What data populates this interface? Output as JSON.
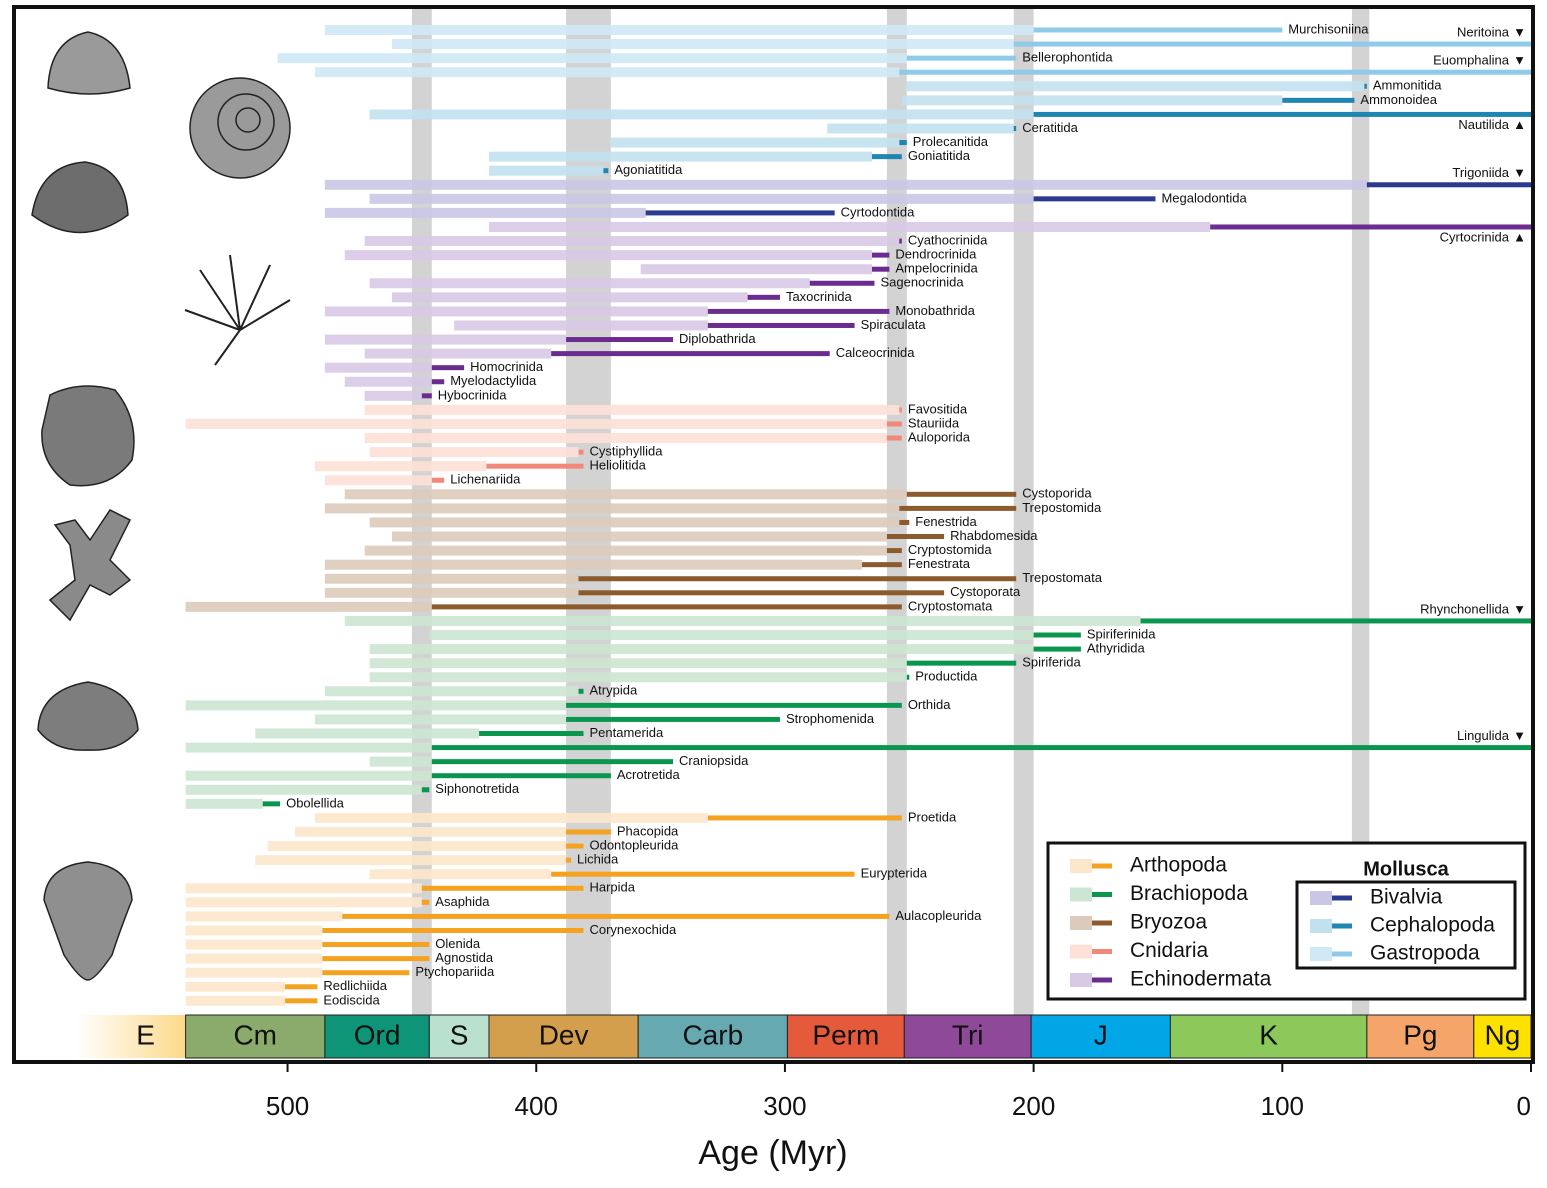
{
  "chart_data": {
    "type": "range",
    "xlabel": "Age (Myr)",
    "xlim": [
      610,
      0
    ],
    "xticks": [
      500,
      400,
      300,
      200,
      100,
      0
    ],
    "bands": [
      [
        450,
        442
      ],
      [
        388,
        370
      ],
      [
        259,
        251
      ],
      [
        208,
        200
      ],
      [
        72,
        65
      ]
    ],
    "mollusca_label": "Mollusca",
    "periods": [
      {
        "name": "E",
        "start": 585,
        "end": 541,
        "color": "#fdd98a",
        "fade": true
      },
      {
        "name": "Cm",
        "start": 541,
        "end": 485,
        "color": "#8aab6b"
      },
      {
        "name": "Ord",
        "start": 485,
        "end": 443,
        "color": "#0e9477"
      },
      {
        "name": "S",
        "start": 443,
        "end": 419,
        "color": "#b9e1cd"
      },
      {
        "name": "Dev",
        "start": 419,
        "end": 359,
        "color": "#d39f4c"
      },
      {
        "name": "Carb",
        "start": 359,
        "end": 299,
        "color": "#67a9b0"
      },
      {
        "name": "Perm",
        "start": 299,
        "end": 252,
        "color": "#e65a3c"
      },
      {
        "name": "Tri",
        "start": 252,
        "end": 201,
        "color": "#8e4a98"
      },
      {
        "name": "J",
        "start": 201,
        "end": 145,
        "color": "#00a6e6"
      },
      {
        "name": "K",
        "start": 145,
        "end": 66,
        "color": "#8cc85a"
      },
      {
        "name": "Pg",
        "start": 66,
        "end": 23,
        "color": "#f6a56a"
      },
      {
        "name": "Ng",
        "start": 23,
        "end": 0,
        "color": "#ffe100"
      }
    ],
    "clades": [
      {
        "name": "Gastropoda",
        "mollusca": true,
        "light": "#cfe9f6",
        "dark": "#8fcbe8",
        "orders": [
          {
            "name": "Murchisoniina",
            "range": [
              485,
              200
            ],
            "dark": [
              200,
              100
            ]
          },
          {
            "name": "Neritoina",
            "range": [
              458,
              208
            ],
            "dark": [
              208,
              0
            ],
            "marker": "▼"
          },
          {
            "name": "Bellerophontida",
            "range": [
              504,
              251
            ],
            "dark": [
              251,
              207
            ]
          },
          {
            "name": "Euomphalina",
            "range": [
              489,
              254
            ],
            "dark": [
              254,
              0
            ],
            "marker": "▼"
          }
        ]
      },
      {
        "name": "Cephalopoda",
        "mollusca": true,
        "light": "#c2e1ee",
        "dark": "#1f86b3",
        "orders": [
          {
            "name": "Ammonitida",
            "range": [
              251,
              67
            ],
            "dark": [
              67,
              66
            ]
          },
          {
            "name": "Ammonoidea",
            "range": [
              253,
              100
            ],
            "dark": [
              100,
              71
            ]
          },
          {
            "name": "Nautilida",
            "range": [
              467,
              200
            ],
            "dark": [
              200,
              0
            ],
            "marker": "▲"
          },
          {
            "name": "Ceratitida",
            "range": [
              283,
              208
            ],
            "dark": [
              208,
              207
            ]
          },
          {
            "name": "Prolecanitida",
            "range": [
              370,
              254
            ],
            "dark": [
              254,
              251
            ]
          },
          {
            "name": "Goniatitida",
            "range": [
              419,
              265
            ],
            "dark": [
              265,
              253
            ]
          },
          {
            "name": "Agoniatitida",
            "range": [
              419,
              373
            ],
            "dark": [
              373,
              371
            ]
          }
        ]
      },
      {
        "name": "Bivalvia",
        "mollusca": true,
        "light": "#c9c6e6",
        "dark": "#2a3a8f",
        "orders": [
          {
            "name": "Trigoniida",
            "range": [
              485,
              66
            ],
            "dark": [
              66,
              0
            ],
            "marker": "▼"
          },
          {
            "name": "Megalodontida",
            "range": [
              467,
              200
            ],
            "dark": [
              200,
              151
            ]
          },
          {
            "name": "Cyrtodontida",
            "range": [
              485,
              356
            ],
            "dark": [
              356,
              280
            ]
          }
        ]
      },
      {
        "name": "Echinodermata",
        "mollusca": false,
        "light": "#d8c9e6",
        "dark": "#6a2d8f",
        "orders": [
          {
            "name": "Cyrtocrinida",
            "range": [
              419,
              129
            ],
            "dark": [
              129,
              0
            ],
            "marker": "▲"
          },
          {
            "name": "Cyathocrinida",
            "range": [
              469,
              254
            ],
            "dark": [
              254,
              253
            ]
          },
          {
            "name": "Dendrocrinida",
            "range": [
              477,
              265
            ],
            "dark": [
              265,
              258
            ]
          },
          {
            "name": "Ampelocrinida",
            "range": [
              358,
              265
            ],
            "dark": [
              265,
              258
            ]
          },
          {
            "name": "Sagenocrinida",
            "range": [
              467,
              290
            ],
            "dark": [
              290,
              264
            ]
          },
          {
            "name": "Taxocrinida",
            "range": [
              458,
              315
            ],
            "dark": [
              315,
              302
            ]
          },
          {
            "name": "Monobathrida",
            "range": [
              485,
              331
            ],
            "dark": [
              331,
              258
            ]
          },
          {
            "name": "Spiraculata",
            "range": [
              433,
              331
            ],
            "dark": [
              331,
              272
            ]
          },
          {
            "name": "Diplobathrida",
            "range": [
              485,
              388
            ],
            "dark": [
              388,
              345
            ]
          },
          {
            "name": "Calceocrinida",
            "range": [
              469,
              394
            ],
            "dark": [
              394,
              282
            ]
          },
          {
            "name": "Homocrinida",
            "range": [
              485,
              442
            ],
            "dark": [
              442,
              429
            ]
          },
          {
            "name": "Myelodactylida",
            "range": [
              477,
              442
            ],
            "dark": [
              442,
              437
            ]
          },
          {
            "name": "Hybocrinida",
            "range": [
              469,
              446
            ],
            "dark": [
              446,
              442
            ]
          }
        ]
      },
      {
        "name": "Cnidaria",
        "mollusca": false,
        "light": "#fde0d6",
        "dark": "#f0897a",
        "orders": [
          {
            "name": "Favositida",
            "range": [
              469,
              254
            ],
            "dark": [
              254,
              253
            ]
          },
          {
            "name": "Stauriida",
            "range": [
              541,
              259
            ],
            "dark": [
              259,
              253
            ]
          },
          {
            "name": "Auloporida",
            "range": [
              469,
              259
            ],
            "dark": [
              259,
              253
            ]
          },
          {
            "name": "Cystiphyllida",
            "range": [
              467,
              383
            ],
            "dark": [
              383,
              381
            ]
          },
          {
            "name": "Heliolitida",
            "range": [
              489,
              420
            ],
            "dark": [
              420,
              381
            ]
          },
          {
            "name": "Lichenariida",
            "range": [
              485,
              442
            ],
            "dark": [
              442,
              437
            ]
          }
        ]
      },
      {
        "name": "Bryozoa",
        "mollusca": false,
        "light": "#dccbbb",
        "dark": "#8b5a2d",
        "orders": [
          {
            "name": "Cystoporida",
            "range": [
              477,
              251
            ],
            "dark": [
              251,
              207
            ]
          },
          {
            "name": "Trepostomida",
            "range": [
              485,
              254
            ],
            "dark": [
              254,
              207
            ]
          },
          {
            "name": "Fenestrida",
            "range": [
              467,
              254
            ],
            "dark": [
              254,
              250
            ]
          },
          {
            "name": "Rhabdomesida",
            "range": [
              458,
              259
            ],
            "dark": [
              259,
              236
            ]
          },
          {
            "name": "Cryptostomida",
            "range": [
              469,
              259
            ],
            "dark": [
              259,
              253
            ]
          },
          {
            "name": "Fenestrata",
            "range": [
              485,
              269
            ],
            "dark": [
              269,
              253
            ]
          },
          {
            "name": "Trepostomata",
            "range": [
              485,
              383
            ],
            "dark": [
              383,
              207
            ]
          },
          {
            "name": "Cystoporata",
            "range": [
              485,
              383
            ],
            "dark": [
              383,
              236
            ]
          },
          {
            "name": "Cryptostomata",
            "range": [
              541,
              442
            ],
            "dark": [
              442,
              253
            ]
          }
        ]
      },
      {
        "name": "Brachiopoda",
        "mollusca": false,
        "light": "#cde6d3",
        "dark": "#0b9650",
        "orders": [
          {
            "name": "Rhynchonellida",
            "range": [
              477,
              157
            ],
            "dark": [
              157,
              0
            ],
            "marker": "▼"
          },
          {
            "name": "Spiriferinida",
            "range": [
              443,
              200
            ],
            "dark": [
              200,
              181
            ]
          },
          {
            "name": "Athyridida",
            "range": [
              467,
              200
            ],
            "dark": [
              200,
              181
            ]
          },
          {
            "name": "Spiriferida",
            "range": [
              467,
              251
            ],
            "dark": [
              251,
              207
            ]
          },
          {
            "name": "Productida",
            "range": [
              467,
              251
            ],
            "dark": [
              251,
              250
            ]
          },
          {
            "name": "Atrypida",
            "range": [
              485,
              383
            ],
            "dark": [
              383,
              381
            ]
          },
          {
            "name": "Orthida",
            "range": [
              541,
              388
            ],
            "dark": [
              388,
              253
            ]
          },
          {
            "name": "Strophomenida",
            "range": [
              489,
              388
            ],
            "dark": [
              388,
              302
            ]
          },
          {
            "name": "Pentamerida",
            "range": [
              513,
              423
            ],
            "dark": [
              423,
              381
            ]
          },
          {
            "name": "Lingulida",
            "range": [
              541,
              442
            ],
            "dark": [
              442,
              0
            ],
            "marker": "▼"
          },
          {
            "name": "Craniopsida",
            "range": [
              467,
              442
            ],
            "dark": [
              442,
              345
            ]
          },
          {
            "name": "Acrotretida",
            "range": [
              541,
              442
            ],
            "dark": [
              442,
              370
            ]
          },
          {
            "name": "Siphonotretida",
            "range": [
              541,
              446
            ],
            "dark": [
              446,
              443
            ]
          },
          {
            "name": "Obolellida",
            "range": [
              541,
              510
            ],
            "dark": [
              510,
              503
            ]
          }
        ]
      },
      {
        "name": "Arthopoda",
        "mollusca": false,
        "light": "#fde7ca",
        "dark": "#f4a21f",
        "orders": [
          {
            "name": "Proetida",
            "range": [
              489,
              331
            ],
            "dark": [
              331,
              253
            ]
          },
          {
            "name": "Phacopida",
            "range": [
              497,
              388
            ],
            "dark": [
              388,
              370
            ]
          },
          {
            "name": "Odontopleurida",
            "range": [
              508,
              388
            ],
            "dark": [
              388,
              381
            ]
          },
          {
            "name": "Lichida",
            "range": [
              513,
              388
            ],
            "dark": [
              388,
              386
            ]
          },
          {
            "name": "Eurypterida",
            "range": [
              467,
              394
            ],
            "dark": [
              394,
              272
            ]
          },
          {
            "name": "Harpida",
            "range": [
              541,
              446
            ],
            "dark": [
              446,
              381
            ]
          },
          {
            "name": "Asaphida",
            "range": [
              541,
              446
            ],
            "dark": [
              446,
              443
            ]
          },
          {
            "name": "Aulacopleurida",
            "range": [
              541,
              478
            ],
            "dark": [
              478,
              258
            ]
          },
          {
            "name": "Corynexochida",
            "range": [
              541,
              486
            ],
            "dark": [
              486,
              381
            ]
          },
          {
            "name": "Olenida",
            "range": [
              541,
              486
            ],
            "dark": [
              486,
              443
            ]
          },
          {
            "name": "Agnostida",
            "range": [
              541,
              486
            ],
            "dark": [
              486,
              443
            ]
          },
          {
            "name": "Ptychopariida",
            "range": [
              541,
              486
            ],
            "dark": [
              486,
              451
            ]
          },
          {
            "name": "Redlichiida",
            "range": [
              541,
              501
            ],
            "dark": [
              501,
              488
            ]
          },
          {
            "name": "Eodiscida",
            "range": [
              541,
              501
            ],
            "dark": [
              501,
              488
            ]
          }
        ]
      }
    ]
  }
}
